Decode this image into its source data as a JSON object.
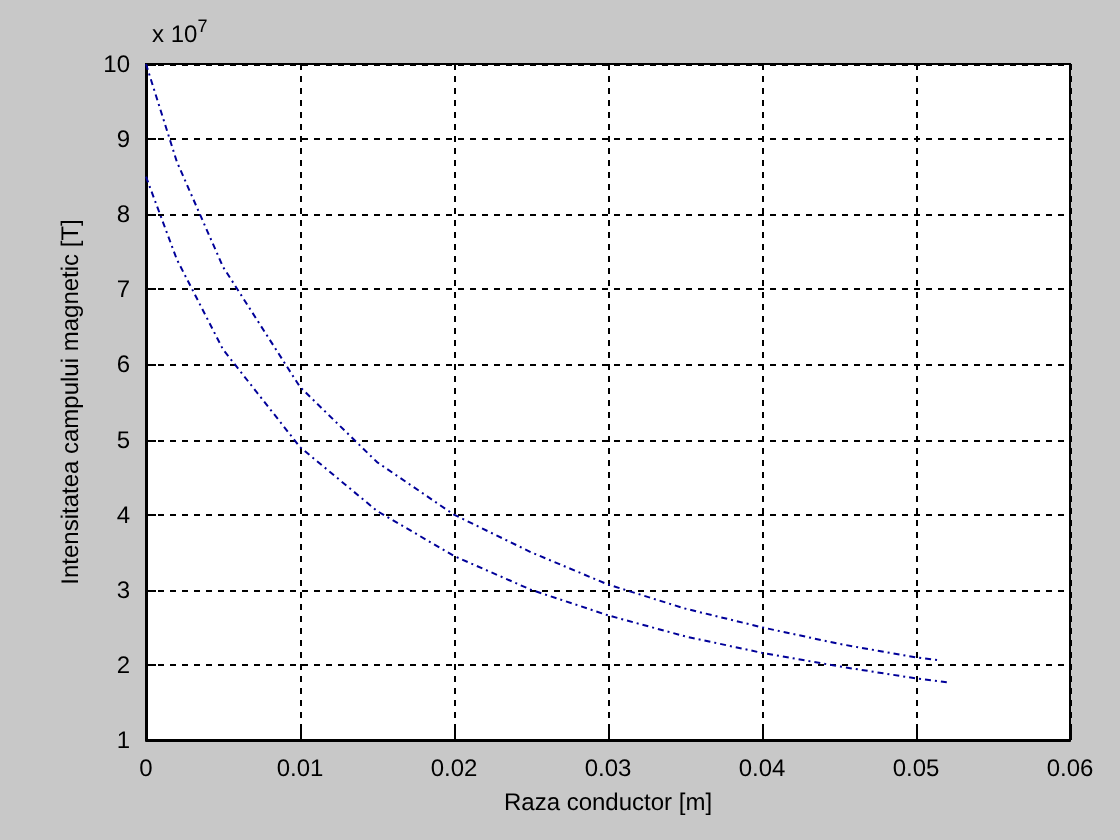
{
  "chart_data": {
    "type": "line",
    "xlabel": "Raza conductor [m]",
    "ylabel": "Intensitatea campului magnetic [T]",
    "annotations": [
      "x 10$^{7}$"
    ],
    "xlim": [
      0,
      0.06
    ],
    "xticks": [
      0,
      0.01,
      0.02,
      0.03,
      0.04,
      0.05,
      0.06
    ],
    "ylim": [
      1,
      10
    ],
    "yticks": [
      1,
      2,
      3,
      4,
      5,
      6,
      7,
      8,
      9,
      10
    ],
    "grid": true,
    "marker": "none",
    "line_style": "dashed",
    "series": [
      {
        "color": "#000099",
        "x": [
          0,
          0.002,
          0.005,
          0.01,
          0.015,
          0.02,
          0.025,
          0.03,
          0.035,
          0.04,
          0.045,
          0.05,
          0.0515
        ],
        "values": [
          10,
          8.7,
          7.3,
          5.7,
          4.7,
          4.0,
          3.5,
          3.07,
          2.75,
          2.5,
          2.28,
          2.1,
          2.06
        ]
      },
      {
        "color": "#000099",
        "x": [
          0,
          0.002,
          0.005,
          0.01,
          0.015,
          0.02,
          0.025,
          0.03,
          0.035,
          0.04,
          0.045,
          0.05,
          0.052
        ],
        "values": [
          8.5,
          7.4,
          6.2,
          4.9,
          4.05,
          3.45,
          3.0,
          2.66,
          2.38,
          2.16,
          1.98,
          1.82,
          1.77
        ]
      }
    ]
  }
}
